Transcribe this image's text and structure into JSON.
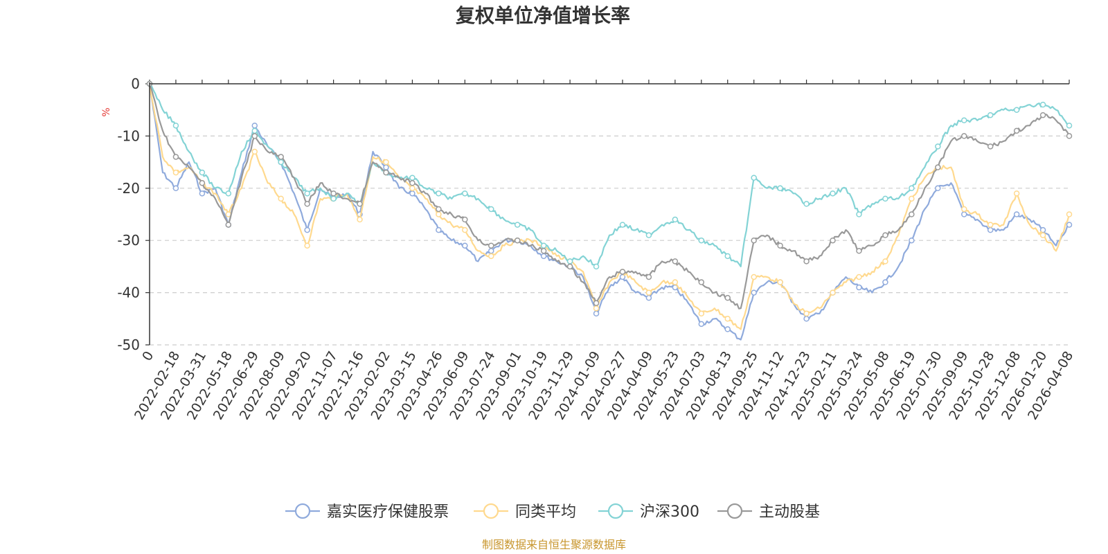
{
  "chart_data": {
    "type": "line",
    "title": "复权单位净值增长率",
    "ylabel": "%",
    "ylim": [
      -50,
      0
    ],
    "yticks": [
      0,
      -10,
      -20,
      -30,
      -40,
      -50
    ],
    "grid": "horizontal-dashed",
    "legend_position": "bottom",
    "x_tick_labels": [
      "0",
      "2022-02-18",
      "2022-03-31",
      "2022-05-18",
      "2022-06-29",
      "2022-08-09",
      "2022-09-20",
      "2022-11-07",
      "2022-12-16",
      "2023-02-02",
      "2023-03-15",
      "2023-04-26",
      "2023-06-09",
      "2023-07-24",
      "2023-09-01",
      "2023-10-19",
      "2023-11-29",
      "2024-01-09",
      "2024-02-27",
      "2024-04-09",
      "2024-05-23",
      "2024-07-03",
      "2024-08-13",
      "2024-09-25",
      "2024-11-12",
      "2024-12-23",
      "2025-02-11",
      "2025-03-24",
      "2025-05-08",
      "2025-06-19",
      "2025-07-30",
      "2025-09-09",
      "2025-10-28",
      "2025-12-08",
      "2026-01-20",
      "2026-04-08"
    ],
    "x": [
      0,
      0.5,
      1,
      1.5,
      2,
      2.5,
      3,
      3.5,
      4,
      4.5,
      5,
      5.5,
      6,
      6.5,
      7,
      7.5,
      8,
      8.5,
      9,
      9.5,
      10,
      10.5,
      11,
      11.5,
      12,
      12.5,
      13,
      13.5,
      14,
      14.5,
      15,
      15.5,
      16,
      16.5,
      17,
      17.5,
      18,
      18.5,
      19,
      19.5,
      20,
      20.5,
      21,
      21.5,
      22,
      22.5,
      23,
      23.5,
      24,
      24.5,
      25,
      25.5,
      26,
      26.5,
      27,
      27.5,
      28,
      28.5,
      29,
      29.5,
      30,
      30.5,
      31,
      31.5,
      32,
      32.5,
      33,
      33.5,
      34,
      34.5,
      35
    ],
    "series": [
      {
        "name": "嘉实医疗保健股票",
        "color": "#8faadc",
        "values": [
          0,
          -17,
          -20,
          -15,
          -21,
          -20,
          -27,
          -17,
          -8,
          -12,
          -15,
          -21,
          -28,
          -20,
          -22,
          -21,
          -25,
          -13,
          -16,
          -20,
          -21,
          -24,
          -28,
          -30,
          -31,
          -34,
          -32,
          -30,
          -30,
          -31,
          -33,
          -34,
          -35,
          -37,
          -44,
          -39,
          -37,
          -40,
          -41,
          -39,
          -39,
          -42,
          -46,
          -45,
          -47,
          -49,
          -40,
          -38,
          -38,
          -42,
          -45,
          -44,
          -40,
          -37,
          -39,
          -40,
          -38,
          -35,
          -30,
          -24,
          -20,
          -19,
          -25,
          -26,
          -28,
          -28,
          -25,
          -26,
          -28,
          -31,
          -27
        ]
      },
      {
        "name": "同类平均",
        "color": "#ffd98e",
        "values": [
          0,
          -14,
          -17,
          -16,
          -19,
          -21,
          -25,
          -20,
          -13,
          -19,
          -22,
          -25,
          -31,
          -22,
          -22,
          -21,
          -26,
          -14,
          -15,
          -18,
          -20,
          -22,
          -25,
          -27,
          -28,
          -32,
          -33,
          -31,
          -30,
          -30,
          -31,
          -33,
          -34,
          -36,
          -43,
          -38,
          -36,
          -38,
          -40,
          -38,
          -38,
          -41,
          -44,
          -43,
          -45,
          -47,
          -37,
          -37,
          -38,
          -42,
          -44,
          -43,
          -40,
          -38,
          -37,
          -36,
          -34,
          -29,
          -22,
          -18,
          -16,
          -16,
          -24,
          -25,
          -27,
          -27,
          -21,
          -27,
          -29,
          -32,
          -25
        ]
      },
      {
        "name": "沪深300",
        "color": "#83d3d5",
        "values": [
          0,
          -5,
          -8,
          -13,
          -17,
          -20,
          -21,
          -13,
          -9,
          -12,
          -15,
          -18,
          -21,
          -20,
          -22,
          -21,
          -23,
          -15,
          -17,
          -18,
          -18,
          -20,
          -21,
          -22,
          -21,
          -22,
          -24,
          -26,
          -27,
          -28,
          -31,
          -32,
          -34,
          -33,
          -35,
          -29,
          -27,
          -28,
          -29,
          -27,
          -26,
          -28,
          -30,
          -31,
          -33,
          -35,
          -18,
          -20,
          -20,
          -21,
          -23,
          -22,
          -21,
          -20,
          -25,
          -23,
          -22,
          -22,
          -20,
          -16,
          -12,
          -8,
          -7,
          -7,
          -6,
          -5,
          -5,
          -4,
          -4,
          -5,
          -8
        ]
      },
      {
        "name": "主动股基",
        "color": "#999999",
        "values": [
          0,
          -9,
          -14,
          -16,
          -19,
          -22,
          -27,
          -18,
          -10,
          -13,
          -14,
          -18,
          -23,
          -19,
          -21,
          -22,
          -23,
          -15,
          -17,
          -18,
          -19,
          -21,
          -24,
          -25,
          -26,
          -30,
          -31,
          -30,
          -30,
          -31,
          -32,
          -34,
          -35,
          -38,
          -42,
          -37,
          -36,
          -36,
          -37,
          -34,
          -34,
          -36,
          -38,
          -40,
          -41,
          -43,
          -30,
          -29,
          -31,
          -32,
          -34,
          -33,
          -30,
          -28,
          -32,
          -31,
          -29,
          -28,
          -25,
          -20,
          -16,
          -11,
          -10,
          -11,
          -12,
          -11,
          -9,
          -8,
          -6,
          -7,
          -10
        ]
      }
    ]
  },
  "source_note": "制图数据来自恒生聚源数据库"
}
